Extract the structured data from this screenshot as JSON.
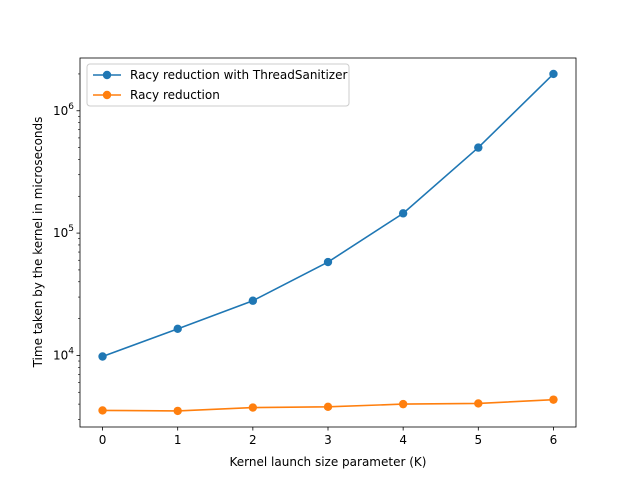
{
  "chart_data": {
    "type": "line",
    "title": "",
    "xlabel": "Kernel launch size parameter (K)",
    "ylabel": "Time taken by the kernel in microseconds",
    "x": [
      0,
      1,
      2,
      3,
      4,
      5,
      6
    ],
    "xlim": [
      -0.3,
      6.3
    ],
    "ylim": [
      2600,
      2700000
    ],
    "yscale": "log",
    "x_ticks": [
      "0",
      "1",
      "2",
      "3",
      "4",
      "5",
      "6"
    ],
    "y_ticks": [
      {
        "value": 10000,
        "base": "10",
        "exp": "4"
      },
      {
        "value": 100000,
        "base": "10",
        "exp": "5"
      },
      {
        "value": 1000000,
        "base": "10",
        "exp": "6"
      }
    ],
    "grid": false,
    "legend_position": "top-left",
    "series": [
      {
        "name": "Racy reduction with ThreadSanitizer",
        "color": "#1f77b4",
        "values": [
          9800,
          16500,
          28000,
          58000,
          145000,
          500000,
          2000000
        ]
      },
      {
        "name": "Racy reduction",
        "color": "#ff7f0e",
        "values": [
          3550,
          3520,
          3750,
          3800,
          4000,
          4050,
          4350
        ]
      }
    ]
  }
}
